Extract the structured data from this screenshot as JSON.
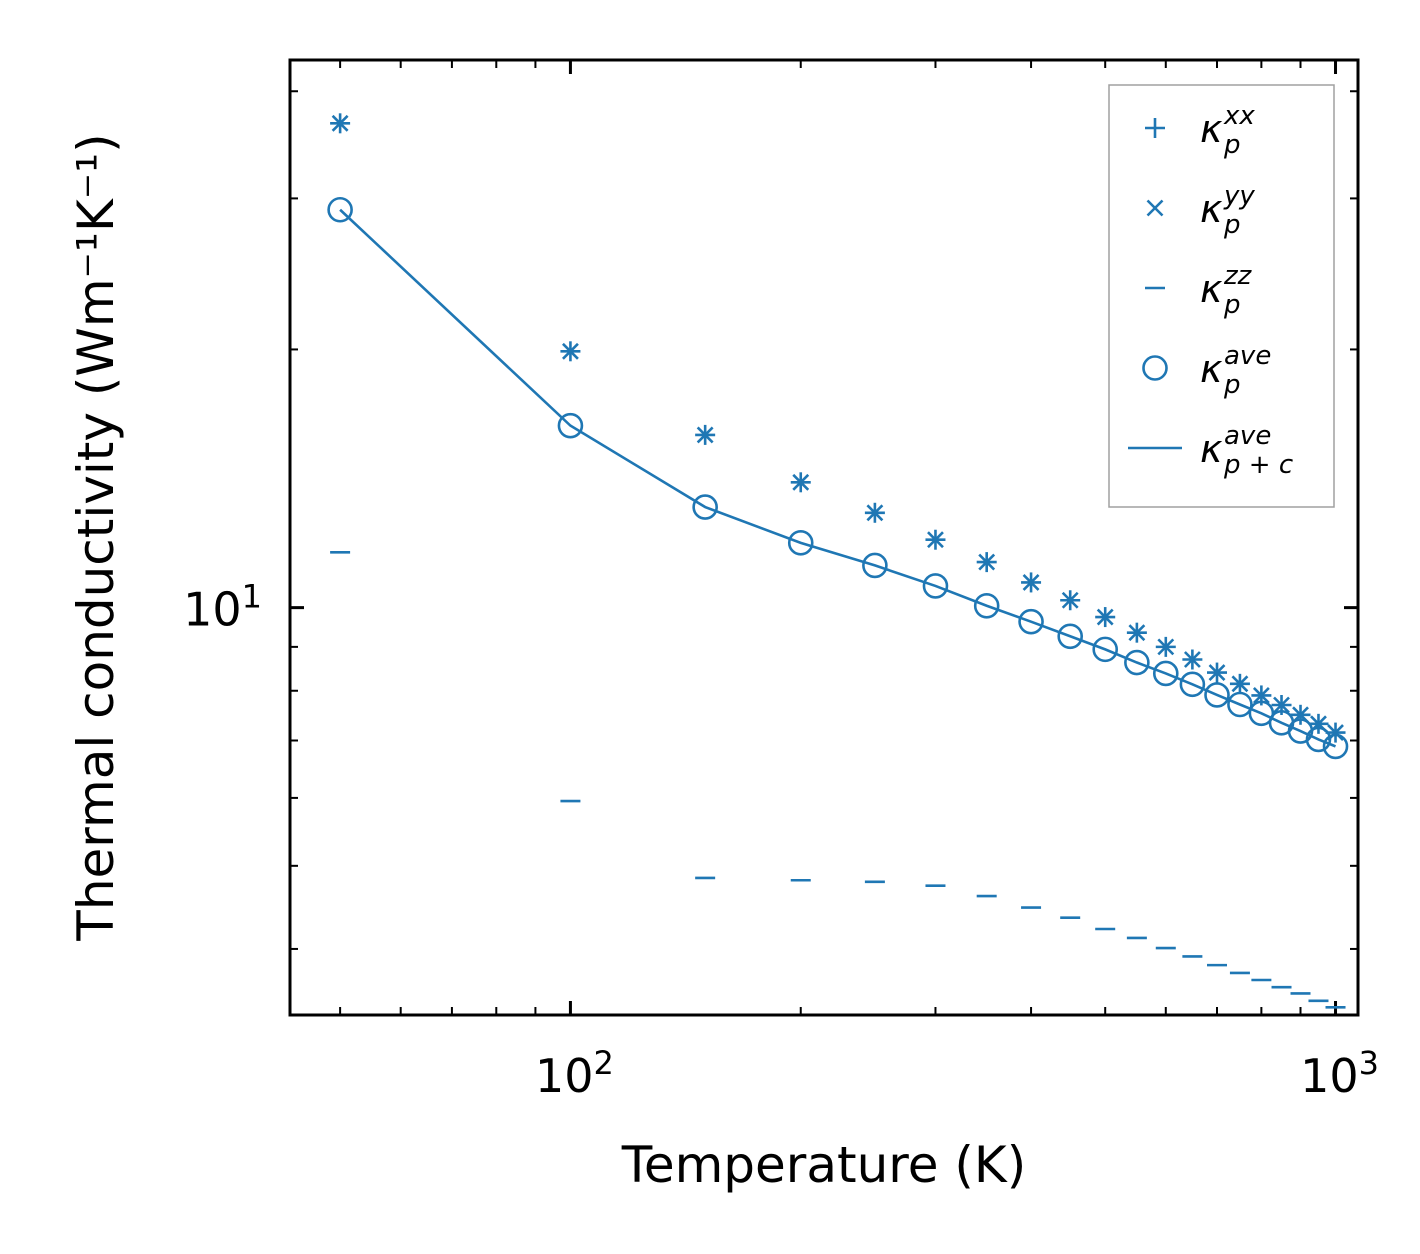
{
  "chart_data": {
    "type": "scatter",
    "xscale": "log",
    "yscale": "log",
    "xlabel": "Temperature (K)",
    "ylabel": "Thermal conductivity (Wm⁻¹K⁻¹)",
    "xlim": [
      43,
      1070
    ],
    "ylim": [
      3.35,
      43.5
    ],
    "x_major_ticks": [
      {
        "value": 100,
        "base": "10",
        "exp": "2"
      },
      {
        "value": 1000,
        "base": "10",
        "exp": "3"
      }
    ],
    "y_major_ticks": [
      {
        "value": 10,
        "base": "10",
        "exp": "1"
      }
    ],
    "x": [
      50,
      100,
      150,
      200,
      250,
      300,
      350,
      400,
      450,
      500,
      550,
      600,
      650,
      700,
      750,
      800,
      850,
      900,
      950,
      1000
    ],
    "series": [
      {
        "name": "kappa_p_xx",
        "marker": "plus",
        "values": [
          36.7,
          19.9,
          15.9,
          14.0,
          12.9,
          12.0,
          11.3,
          10.7,
          10.2,
          9.75,
          9.35,
          9.0,
          8.7,
          8.4,
          8.15,
          7.9,
          7.7,
          7.5,
          7.32,
          7.15
        ]
      },
      {
        "name": "kappa_p_yy",
        "marker": "x",
        "values": [
          36.7,
          19.9,
          15.9,
          14.0,
          12.9,
          12.0,
          11.3,
          10.7,
          10.2,
          9.75,
          9.35,
          9.0,
          8.7,
          8.4,
          8.15,
          7.9,
          7.7,
          7.5,
          7.32,
          7.15
        ]
      },
      {
        "name": "kappa_p_zz",
        "marker": "dash",
        "values": [
          11.6,
          5.95,
          4.84,
          4.81,
          4.79,
          4.74,
          4.61,
          4.47,
          4.35,
          4.22,
          4.12,
          4.01,
          3.92,
          3.83,
          3.75,
          3.68,
          3.61,
          3.55,
          3.48,
          3.42
        ]
      },
      {
        "name": "kappa_p_ave",
        "marker": "circle",
        "values": [
          29.1,
          16.3,
          13.1,
          11.9,
          11.2,
          10.6,
          10.05,
          9.63,
          9.26,
          8.94,
          8.63,
          8.38,
          8.14,
          7.91,
          7.71,
          7.53,
          7.34,
          7.18,
          7.02,
          6.89
        ]
      },
      {
        "name": "kappa_p+c_ave",
        "marker": "line",
        "values": [
          29.1,
          16.3,
          13.1,
          11.9,
          11.2,
          10.6,
          10.05,
          9.63,
          9.26,
          8.94,
          8.63,
          8.38,
          8.14,
          7.91,
          7.71,
          7.53,
          7.34,
          7.18,
          7.02,
          6.89
        ]
      }
    ],
    "legend": {
      "placement": "upper-right",
      "entries": [
        {
          "symbol": "κ",
          "sub": "p",
          "sup": "xx",
          "marker": "plus"
        },
        {
          "symbol": "κ",
          "sub": "p",
          "sup": "yy",
          "marker": "x"
        },
        {
          "symbol": "κ",
          "sub": "p",
          "sup": "zz",
          "marker": "dash"
        },
        {
          "symbol": "κ",
          "sub": "p",
          "sup": "ave",
          "marker": "circle"
        },
        {
          "symbol": "κ",
          "sub": "p + c",
          "sup": "ave",
          "marker": "line"
        }
      ]
    },
    "color": "#1f77b4"
  }
}
